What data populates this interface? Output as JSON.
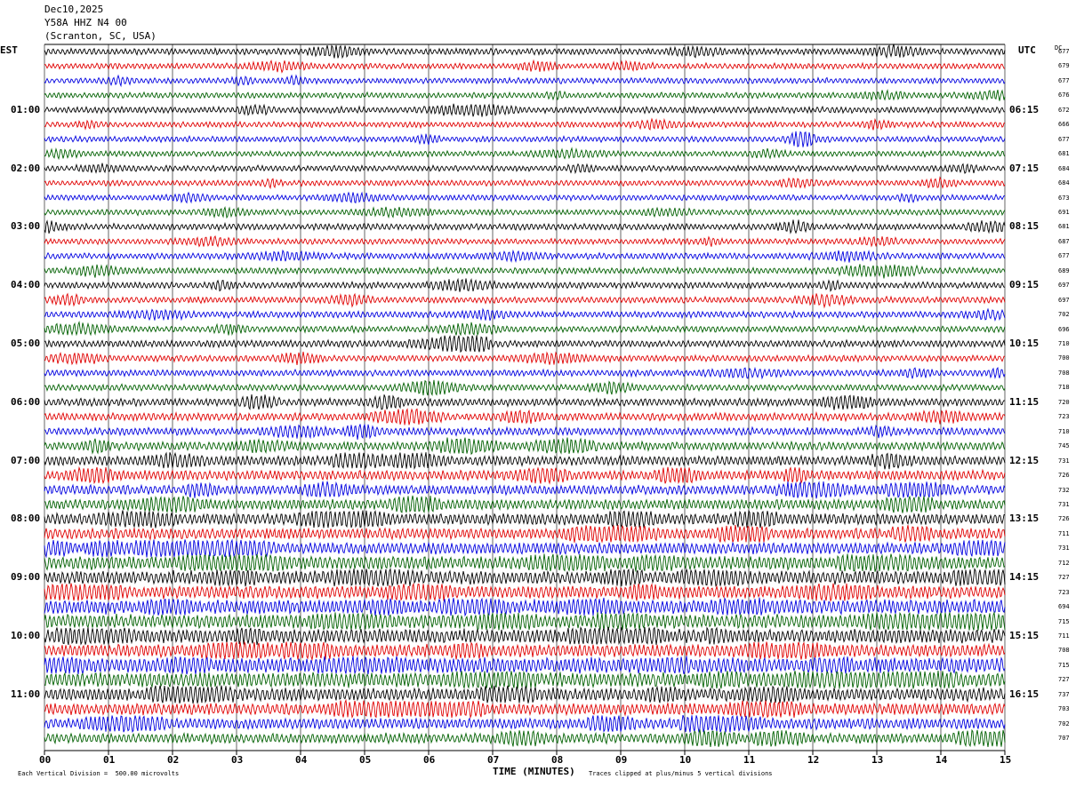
{
  "header": {
    "date": "Dec10,2025",
    "station": "Y58A HHZ N4 00",
    "location": "(Scranton, SC, USA)"
  },
  "left_tz": "EST",
  "right_tz": "UTC",
  "dc_label": "DC",
  "footer": {
    "scale_note": "Each Vertical Division =  500.00 microvolts",
    "xlabel": "TIME (MINUTES)",
    "clip_note": "Traces clipped at plus/minus 5 vertical divisions"
  },
  "colors": {
    "cycle": [
      "#000000",
      "#e00000",
      "#0000e0",
      "#006000"
    ]
  },
  "chart_data": {
    "type": "line",
    "title": "",
    "xlabel": "TIME (MINUTES)",
    "xlim": [
      0,
      15
    ],
    "x_ticks": [
      "00",
      "01",
      "02",
      "03",
      "04",
      "05",
      "06",
      "07",
      "08",
      "09",
      "10",
      "11",
      "12",
      "13",
      "14",
      "15"
    ],
    "grid": true,
    "n_traces": 48,
    "minutes_per_trace": 15,
    "left_hour_labels": [
      "01:00",
      "02:00",
      "03:00",
      "04:00",
      "05:00",
      "06:00",
      "07:00",
      "08:00",
      "09:00",
      "10:00",
      "11:00"
    ],
    "right_hour_labels": [
      "06:15",
      "07:15",
      "08:15",
      "09:15",
      "10:15",
      "11:15",
      "12:15",
      "13:15",
      "14:15",
      "15:15",
      "16:15"
    ],
    "dc_offsets": [
      677,
      679,
      677,
      676,
      672,
      666,
      677,
      681,
      684,
      684,
      673,
      691,
      681,
      687,
      677,
      689,
      697,
      697,
      702,
      696,
      710,
      700,
      708,
      718,
      720,
      723,
      710,
      745,
      731,
      726,
      732,
      731,
      726,
      711,
      731,
      712,
      727,
      723,
      694,
      715,
      711,
      708,
      715,
      727,
      737,
      703,
      702,
      707
    ],
    "activity": [
      1.0,
      0.9,
      0.9,
      0.9,
      1.0,
      0.9,
      0.9,
      0.9,
      0.9,
      0.9,
      0.9,
      0.9,
      1.0,
      0.9,
      1.0,
      1.0,
      1.0,
      1.0,
      1.0,
      1.0,
      1.1,
      1.0,
      1.0,
      1.0,
      1.2,
      1.2,
      1.2,
      1.3,
      1.5,
      1.5,
      1.5,
      1.6,
      1.8,
      1.7,
      1.8,
      2.1,
      2.1,
      2.0,
      2.3,
      2.2,
      2.2,
      2.0,
      2.4,
      2.3,
      2.0,
      1.8,
      1.7,
      1.6
    ]
  }
}
